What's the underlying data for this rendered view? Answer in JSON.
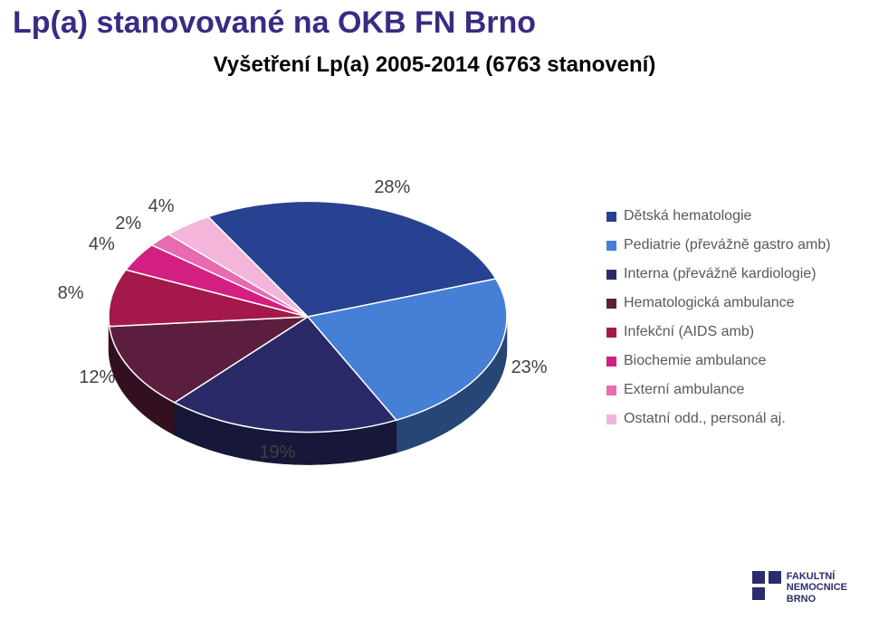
{
  "title": {
    "text": "Lp(a) stanovované na OKB FN Brno",
    "color": "#3b2a82",
    "fontsize": 34
  },
  "subtitle": {
    "text": "Vyšetření Lp(a) 2005-2014 (6763 stanovení)",
    "color": "#000000",
    "fontsize": 24
  },
  "chart": {
    "type": "pie",
    "slices": [
      {
        "label": "Dětská hematologie",
        "value": 28,
        "color": "#284191",
        "pct_text": "28%"
      },
      {
        "label": "Pediatrie (převážně gastro amb)",
        "value": 23,
        "color": "#4680d6",
        "pct_text": "23%"
      },
      {
        "label": "Interna (převážně kardiologie)",
        "value": 19,
        "color": "#2b2a68",
        "pct_text": "19%"
      },
      {
        "label": "Hematologická ambulance",
        "value": 12,
        "color": "#5c1e3e",
        "pct_text": "12%"
      },
      {
        "label": "Infekční (AIDS amb)",
        "value": 8,
        "color": "#a4184b",
        "pct_text": "8%"
      },
      {
        "label": "Biochemie ambulance",
        "value": 4,
        "color": "#d31f81",
        "pct_text": "4%"
      },
      {
        "label": "Externí ambulance",
        "value": 2,
        "color": "#e86ab0",
        "pct_text": "2%"
      },
      {
        "label": "Ostatní odd., personál aj.",
        "value": 4,
        "color": "#f3b6da",
        "pct_text": "4%"
      }
    ],
    "background_color": "#ffffff",
    "stroke_color": "#ffffff",
    "stroke_width": 1.5,
    "tilt": 0.58,
    "depth": 36,
    "start_angle_deg": -120,
    "radius": 220,
    "label_fontsize": 20,
    "label_color": "#404040"
  },
  "legend": {
    "fontsize": 16,
    "color": "#595959",
    "swatch_size": 11
  },
  "logo": {
    "line1": "FAKULTNÍ",
    "line2": "NEMOCNICE",
    "line3": "BRNO",
    "mark_color": "#2c2c6c",
    "text_color": "#2c2c6c"
  }
}
